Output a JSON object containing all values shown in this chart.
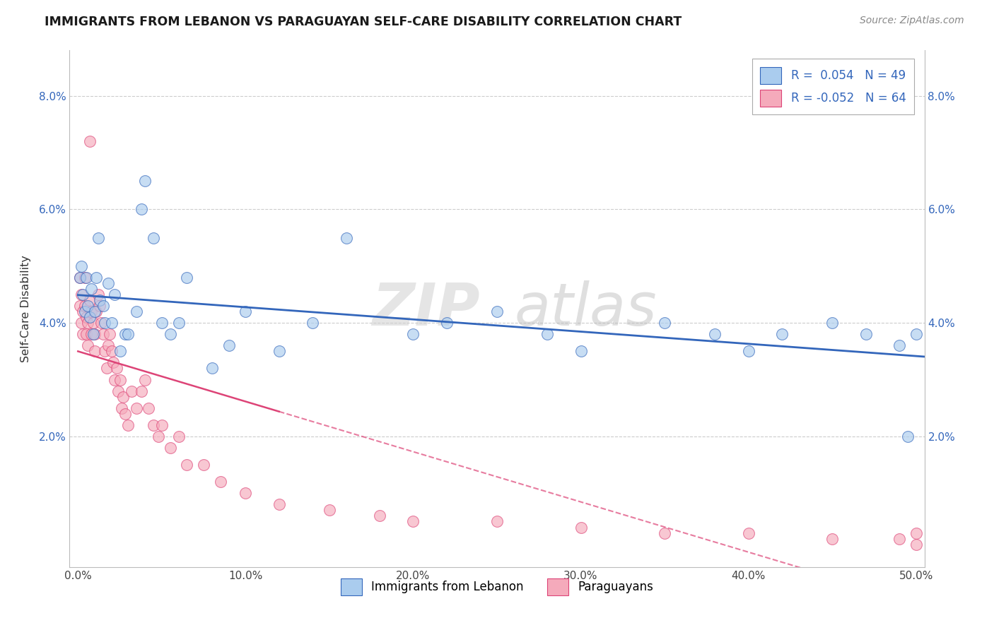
{
  "title": "IMMIGRANTS FROM LEBANON VS PARAGUAYAN SELF-CARE DISABILITY CORRELATION CHART",
  "source": "Source: ZipAtlas.com",
  "ylabel": "Self-Care Disability",
  "xlim": [
    -0.005,
    0.505
  ],
  "ylim": [
    -0.003,
    0.088
  ],
  "xticks": [
    0.0,
    0.1,
    0.2,
    0.3,
    0.4,
    0.5
  ],
  "xticklabels": [
    "0.0%",
    "10.0%",
    "20.0%",
    "30.0%",
    "40.0%",
    "50.0%"
  ],
  "yticks": [
    0.02,
    0.04,
    0.06,
    0.08
  ],
  "yticklabels": [
    "2.0%",
    "4.0%",
    "6.0%",
    "8.0%"
  ],
  "color_lebanon": "#aaccee",
  "color_paraguay": "#f5aabb",
  "line_lebanon": "#3366bb",
  "line_paraguay": "#dd4477",
  "lebanon_x": [
    0.001,
    0.002,
    0.003,
    0.004,
    0.005,
    0.006,
    0.007,
    0.008,
    0.009,
    0.01,
    0.011,
    0.012,
    0.013,
    0.015,
    0.016,
    0.018,
    0.02,
    0.022,
    0.025,
    0.028,
    0.03,
    0.035,
    0.038,
    0.04,
    0.045,
    0.05,
    0.055,
    0.06,
    0.065,
    0.08,
    0.09,
    0.1,
    0.12,
    0.14,
    0.16,
    0.2,
    0.22,
    0.25,
    0.28,
    0.3,
    0.35,
    0.38,
    0.4,
    0.42,
    0.45,
    0.47,
    0.49,
    0.495,
    0.5
  ],
  "lebanon_y": [
    0.048,
    0.05,
    0.045,
    0.042,
    0.048,
    0.043,
    0.041,
    0.046,
    0.038,
    0.042,
    0.048,
    0.055,
    0.044,
    0.043,
    0.04,
    0.047,
    0.04,
    0.045,
    0.035,
    0.038,
    0.038,
    0.042,
    0.06,
    0.065,
    0.055,
    0.04,
    0.038,
    0.04,
    0.048,
    0.032,
    0.036,
    0.042,
    0.035,
    0.04,
    0.055,
    0.038,
    0.04,
    0.042,
    0.038,
    0.035,
    0.04,
    0.038,
    0.035,
    0.038,
    0.04,
    0.038,
    0.036,
    0.02,
    0.038
  ],
  "paraguay_x": [
    0.001,
    0.001,
    0.002,
    0.002,
    0.003,
    0.003,
    0.004,
    0.004,
    0.005,
    0.005,
    0.006,
    0.006,
    0.007,
    0.007,
    0.008,
    0.008,
    0.009,
    0.01,
    0.01,
    0.011,
    0.012,
    0.013,
    0.014,
    0.015,
    0.016,
    0.017,
    0.018,
    0.019,
    0.02,
    0.021,
    0.022,
    0.023,
    0.024,
    0.025,
    0.026,
    0.027,
    0.028,
    0.03,
    0.032,
    0.035,
    0.038,
    0.04,
    0.042,
    0.045,
    0.048,
    0.05,
    0.055,
    0.06,
    0.065,
    0.075,
    0.085,
    0.1,
    0.12,
    0.15,
    0.18,
    0.2,
    0.25,
    0.3,
    0.35,
    0.4,
    0.45,
    0.49,
    0.5,
    0.5
  ],
  "paraguay_y": [
    0.048,
    0.043,
    0.045,
    0.04,
    0.042,
    0.038,
    0.048,
    0.043,
    0.041,
    0.038,
    0.04,
    0.036,
    0.072,
    0.044,
    0.038,
    0.042,
    0.04,
    0.038,
    0.035,
    0.042,
    0.045,
    0.043,
    0.04,
    0.038,
    0.035,
    0.032,
    0.036,
    0.038,
    0.035,
    0.033,
    0.03,
    0.032,
    0.028,
    0.03,
    0.025,
    0.027,
    0.024,
    0.022,
    0.028,
    0.025,
    0.028,
    0.03,
    0.025,
    0.022,
    0.02,
    0.022,
    0.018,
    0.02,
    0.015,
    0.015,
    0.012,
    0.01,
    0.008,
    0.007,
    0.006,
    0.005,
    0.005,
    0.004,
    0.003,
    0.003,
    0.002,
    0.002,
    0.001,
    0.003
  ]
}
